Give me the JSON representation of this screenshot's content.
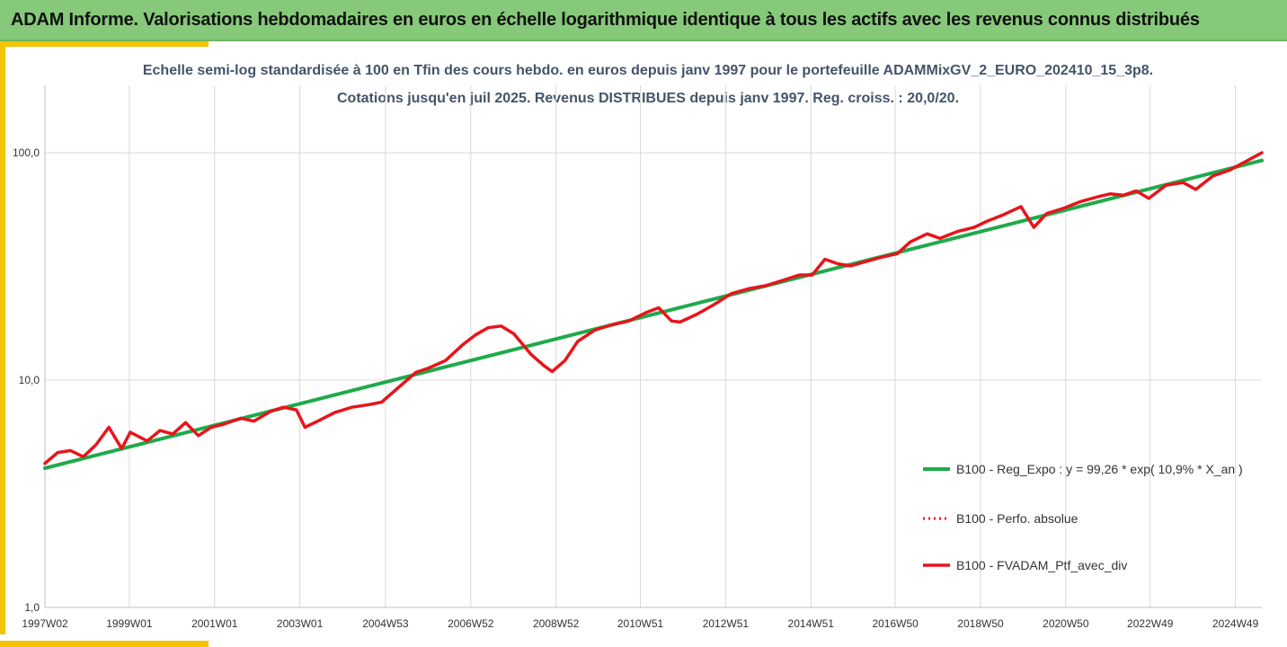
{
  "header": {
    "title": "ADAM Informe. Valorisations hebdomadaires en euros en échelle logarithmique identique à tous les actifs avec les revenus connus distribués"
  },
  "colors": {
    "header_bg": "#86c97a",
    "accent": "#f2c500",
    "regression": "#1faa4b",
    "portfolio": "#e8141b",
    "title_text": "#44546a",
    "grid": "#d9d9d9"
  },
  "chart_data": {
    "type": "line",
    "title": "Echelle semi-log standardisée  à 100 en Tfin des cours hebdo.  en euros depuis janv 1997 pour le portefeuille ADAMMixGV_2_EURO_202410_15_3p8.",
    "subtitle": "Cotations  jusqu'en juil 2025. Revenus DISTRIBUES depuis janv 1997. Reg. croiss. : 20,0/20.",
    "y_scale": "log",
    "ylim": [
      1,
      100
    ],
    "y_ticks": [
      1,
      10,
      100
    ],
    "y_tick_labels": [
      "1,0",
      "10,0",
      "100,0"
    ],
    "x_range": [
      1997.0,
      2025.55
    ],
    "x_ticks": [
      1997.0,
      1998.98,
      2000.98,
      2002.98,
      2004.99,
      2006.99,
      2008.99,
      2010.97,
      2012.97,
      2014.97,
      2016.95,
      2018.95,
      2020.95,
      2022.93,
      2024.93
    ],
    "x_tick_labels": [
      "1997W02",
      "1999W01",
      "2001W01",
      "2003W01",
      "2004W53",
      "2006W52",
      "2008W52",
      "2010W51",
      "2012W51",
      "2014W51",
      "2016W50",
      "2018W50",
      "2020W50",
      "2022W49",
      "2024W49"
    ],
    "grid": "vertical",
    "legend_position": "right",
    "series": [
      {
        "name": "B100 - Reg_Expo : y = 99,26 * exp( 10,9% *  X_an )",
        "style": "solid",
        "x": [
          1997.0,
          2025.55
        ],
        "y": [
          4.1,
          92.5
        ]
      },
      {
        "name": "B100 - Perfo. absolue",
        "style": "dotted",
        "x": [],
        "y": []
      },
      {
        "name": "B100 - FVADAM_Ptf_avec_div",
        "style": "solid",
        "x": [
          1997.0,
          1997.3,
          1997.6,
          1997.9,
          1998.2,
          1998.5,
          1998.8,
          1999.0,
          1999.4,
          1999.7,
          2000.0,
          2000.3,
          2000.6,
          2000.9,
          2001.2,
          2001.6,
          2001.9,
          2002.3,
          2002.6,
          2002.9,
          2003.1,
          2003.4,
          2003.8,
          2004.2,
          2004.6,
          2004.9,
          2005.3,
          2005.7,
          2006.0,
          2006.4,
          2006.8,
          2007.1,
          2007.4,
          2007.7,
          2008.0,
          2008.4,
          2008.7,
          2008.9,
          2009.2,
          2009.5,
          2009.9,
          2010.3,
          2010.7,
          2011.1,
          2011.4,
          2011.7,
          2011.9,
          2012.3,
          2012.7,
          2013.1,
          2013.5,
          2013.9,
          2014.3,
          2014.7,
          2015.0,
          2015.3,
          2015.6,
          2015.9,
          2016.2,
          2016.6,
          2017.0,
          2017.3,
          2017.7,
          2018.0,
          2018.4,
          2018.8,
          2019.1,
          2019.5,
          2019.9,
          2020.2,
          2020.5,
          2020.9,
          2021.3,
          2021.7,
          2022.0,
          2022.3,
          2022.6,
          2022.9,
          2023.3,
          2023.7,
          2024.0,
          2024.4,
          2024.8,
          2025.1,
          2025.55
        ],
        "y": [
          4.3,
          4.8,
          4.9,
          4.6,
          5.2,
          6.2,
          5.0,
          5.9,
          5.4,
          6.0,
          5.8,
          6.5,
          5.7,
          6.2,
          6.4,
          6.8,
          6.6,
          7.3,
          7.6,
          7.4,
          6.2,
          6.6,
          7.2,
          7.6,
          7.8,
          8.0,
          9.3,
          10.8,
          11.3,
          12.2,
          14.3,
          15.8,
          17.0,
          17.3,
          16.0,
          13.0,
          11.6,
          10.9,
          12.2,
          14.8,
          16.6,
          17.5,
          18.2,
          19.8,
          20.8,
          18.2,
          18.0,
          19.5,
          21.5,
          24.0,
          25.2,
          26.0,
          27.4,
          29.0,
          29.0,
          34.0,
          32.5,
          31.8,
          33.0,
          34.6,
          36.0,
          40.5,
          44.0,
          42.0,
          45.0,
          47.0,
          50.0,
          53.5,
          58.0,
          47.0,
          54.0,
          57.0,
          61.0,
          64.0,
          66.0,
          65.0,
          68.0,
          63.0,
          72.0,
          74.0,
          69.0,
          79.0,
          84.0,
          90.0,
          100.0
        ]
      }
    ]
  }
}
